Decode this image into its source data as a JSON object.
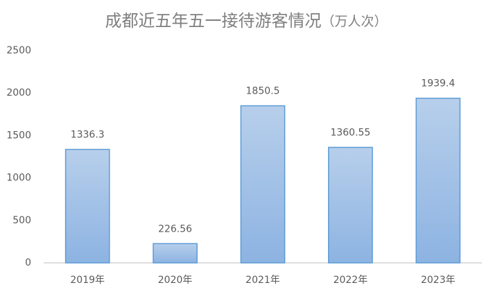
{
  "chart_data": {
    "type": "bar",
    "title": "成都近五年五一接待游客情况",
    "unit": "（万人次）",
    "categories": [
      "2019年",
      "2020年",
      "2021年",
      "2022年",
      "2023年"
    ],
    "values": [
      1336.3,
      226.56,
      1850.5,
      1360.55,
      1939.4
    ],
    "color": "#5b9bd5",
    "ylim": [
      0,
      2500
    ],
    "yticks": [
      0,
      500,
      1000,
      1500,
      2000,
      2500
    ],
    "grid": false
  }
}
